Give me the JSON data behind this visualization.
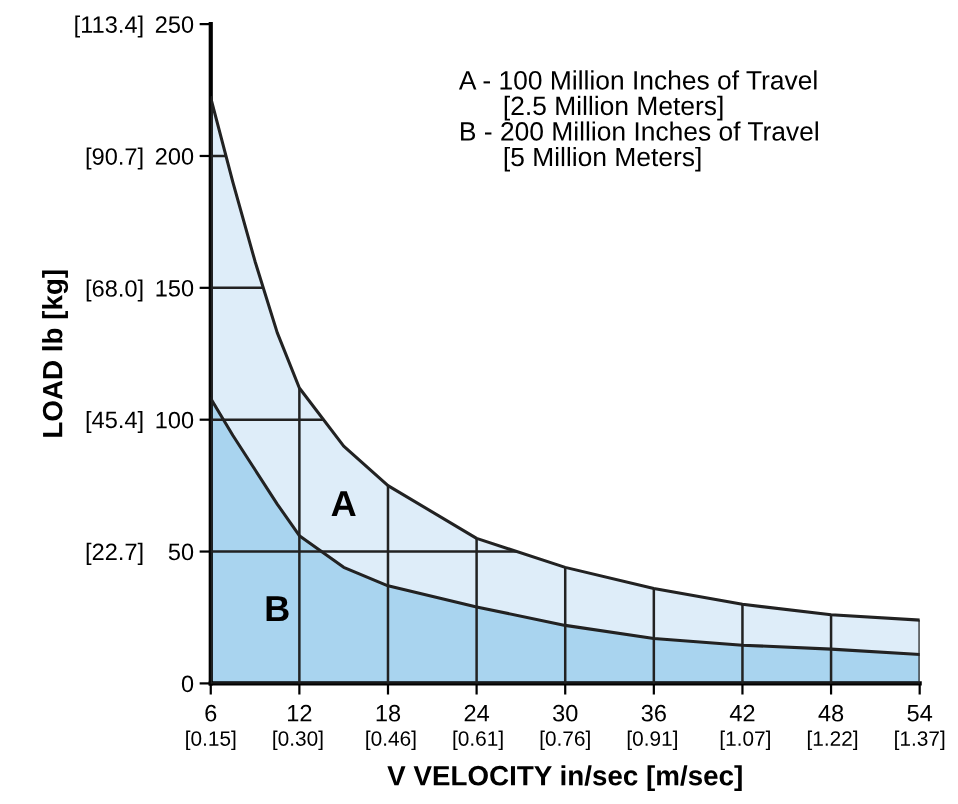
{
  "chart_data": {
    "type": "area",
    "xlabel": "V VELOCITY in/sec [m/sec]",
    "y2label": "LOAD lb [kg]",
    "x": [
      6,
      7.5,
      9,
      10.5,
      12,
      15,
      18,
      24,
      30,
      36,
      42,
      48,
      54
    ],
    "series": [
      {
        "name": "A",
        "color": "#deedf9",
        "values": [
          222,
          190,
          160,
          133,
          112,
          90,
          75,
          55,
          44,
          36,
          30,
          26,
          24
        ]
      },
      {
        "name": "B",
        "color": "#a9d4ef",
        "values": [
          108,
          94,
          81,
          68,
          56,
          44,
          37,
          29,
          22,
          17,
          14.5,
          13,
          11
        ]
      }
    ],
    "xlim": [
      6,
      54
    ],
    "ylim": [
      0,
      250
    ],
    "xticks": [
      6,
      12,
      18,
      24,
      30,
      36,
      42,
      48,
      54
    ],
    "yticks": [
      0,
      50,
      100,
      150,
      200,
      250
    ],
    "x2lim": [
      0.15,
      1.37
    ],
    "x2ticks": [
      {
        "value": 0.15,
        "label": "[0.15]"
      },
      {
        "value": 0.3,
        "label": "[0.30]"
      },
      {
        "value": 0.46,
        "label": "[0.46]"
      },
      {
        "value": 0.61,
        "label": "[0.61]"
      },
      {
        "value": 0.76,
        "label": "[0.76]"
      },
      {
        "value": 0.91,
        "label": "[0.91]"
      },
      {
        "value": 1.07,
        "label": "[1.07]"
      },
      {
        "value": 1.22,
        "label": "[1.22]"
      },
      {
        "value": 1.37,
        "label": "[1.37]"
      }
    ],
    "y2lim": [
      0,
      113.4
    ],
    "y2ticks": [
      {
        "value": 22.7,
        "label": "[22.7]"
      },
      {
        "value": 45.4,
        "label": "[45.4]"
      },
      {
        "value": 68.0,
        "label": "[68.0]"
      },
      {
        "value": 90.7,
        "label": "[90.7]"
      },
      {
        "value": 113.4,
        "label": "[113.4]"
      }
    ],
    "grid": true,
    "annotations": [
      "A - 100 Million Inches of Travel\n      [2.5 Million Meters]\nB - 200 Million Inches of Travel\n      [5 Million Meters]"
    ]
  }
}
